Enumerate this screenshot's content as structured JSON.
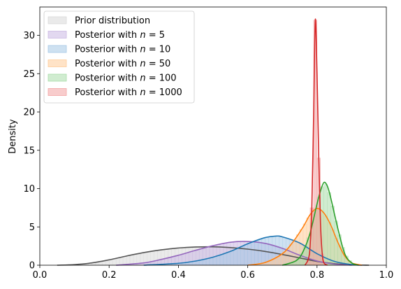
{
  "chart_data": {
    "type": "area",
    "xlabel": "",
    "ylabel": "Density",
    "xlim": [
      0.0,
      1.0
    ],
    "ylim": [
      0,
      33.7
    ],
    "xticks": [
      "0.0",
      "0.2",
      "0.4",
      "0.6",
      "0.8",
      "1.0"
    ],
    "yticks": [
      "0",
      "5",
      "10",
      "15",
      "20",
      "25",
      "30"
    ],
    "legend_position": "top-left",
    "grid": false,
    "series": [
      {
        "name": "Prior distribution",
        "line_color": "#555555",
        "fill_color": "#d9d9d9",
        "x": [
          0.05,
          0.1,
          0.15,
          0.2,
          0.25,
          0.3,
          0.35,
          0.4,
          0.45,
          0.5,
          0.55,
          0.6,
          0.65,
          0.7,
          0.75,
          0.8,
          0.85,
          0.9,
          0.95
        ],
        "y": [
          0.0,
          0.08,
          0.3,
          0.7,
          1.2,
          1.65,
          2.0,
          2.25,
          2.38,
          2.4,
          2.3,
          2.1,
          1.8,
          1.4,
          0.95,
          0.5,
          0.2,
          0.05,
          0.0
        ]
      },
      {
        "name": "Posterior with $n = 5$",
        "line_color": "#9467bd",
        "fill_color": "#cbb8e3",
        "x": [
          0.22,
          0.3,
          0.35,
          0.4,
          0.45,
          0.5,
          0.55,
          0.6,
          0.65,
          0.7,
          0.75,
          0.8,
          0.85,
          0.9
        ],
        "y": [
          0.0,
          0.3,
          0.75,
          1.3,
          1.95,
          2.55,
          3.0,
          3.1,
          2.85,
          2.2,
          1.3,
          0.55,
          0.15,
          0.0
        ]
      },
      {
        "name": "Posterior with $n = 10$",
        "line_color": "#1f77b4",
        "fill_color": "#a6c8e6",
        "x": [
          0.3,
          0.4,
          0.45,
          0.5,
          0.55,
          0.6,
          0.65,
          0.68,
          0.7,
          0.75,
          0.8,
          0.85,
          0.9,
          0.93
        ],
        "y": [
          0.0,
          0.25,
          0.55,
          1.05,
          1.8,
          2.8,
          3.6,
          3.8,
          3.7,
          2.9,
          1.5,
          0.5,
          0.08,
          0.0
        ]
      },
      {
        "name": "Posterior with $n = 50$",
        "line_color": "#ff7f0e",
        "fill_color": "#ffcc99",
        "x": [
          0.6,
          0.65,
          0.7,
          0.73,
          0.76,
          0.78,
          0.8,
          0.82,
          0.84,
          0.86,
          0.88,
          0.9,
          0.93
        ],
        "y": [
          0.0,
          0.35,
          1.5,
          3.0,
          5.0,
          6.6,
          7.4,
          6.8,
          5.2,
          3.0,
          1.2,
          0.3,
          0.0
        ]
      },
      {
        "name": "Posterior with $n = 100$",
        "line_color": "#2ca02c",
        "fill_color": "#a9dca9",
        "x": [
          0.7,
          0.74,
          0.76,
          0.78,
          0.8,
          0.81,
          0.82,
          0.83,
          0.84,
          0.86,
          0.88,
          0.9,
          0.92
        ],
        "y": [
          0.0,
          0.6,
          1.8,
          4.2,
          8.0,
          9.7,
          10.8,
          10.3,
          8.7,
          4.8,
          1.5,
          0.3,
          0.0
        ]
      },
      {
        "name": "Posterior with $n = 1000$",
        "line_color": "#d62728",
        "fill_color": "#f2a3a3",
        "x": [
          0.765,
          0.775,
          0.78,
          0.785,
          0.79,
          0.795,
          0.8,
          0.805,
          0.81,
          0.815,
          0.82,
          0.83
        ],
        "y": [
          0.0,
          0.8,
          2.5,
          7.5,
          19.0,
          32.0,
          25.0,
          14.0,
          5.5,
          1.5,
          0.3,
          0.0
        ]
      }
    ]
  }
}
